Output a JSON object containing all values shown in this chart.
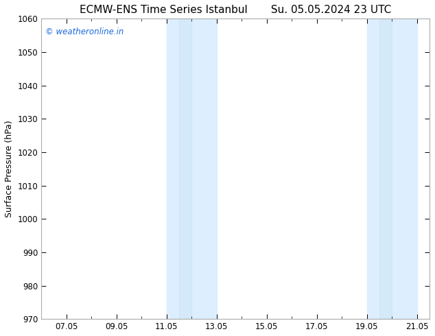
{
  "title_left": "ECMW-ENS Time Series Istanbul",
  "title_right": "Su. 05.05.2024 23 UTC",
  "ylabel": "Surface Pressure (hPa)",
  "background_color": "#ffffff",
  "plot_bg_color": "#ffffff",
  "ylim": [
    970,
    1060
  ],
  "yticks": [
    970,
    980,
    990,
    1000,
    1010,
    1020,
    1030,
    1040,
    1050,
    1060
  ],
  "xlim": [
    6.0,
    21.5
  ],
  "xtick_labels": [
    "07.05",
    "09.05",
    "11.05",
    "13.05",
    "15.05",
    "17.05",
    "19.05",
    "21.05"
  ],
  "xtick_positions": [
    7,
    9,
    11,
    13,
    15,
    17,
    19,
    21
  ],
  "minor_xtick_positions": [
    6,
    7,
    8,
    9,
    10,
    11,
    12,
    13,
    14,
    15,
    16,
    17,
    18,
    19,
    20,
    21
  ],
  "shaded_bands": [
    {
      "x_start": 11.0,
      "x_end": 11.5
    },
    {
      "x_start": 11.5,
      "x_end": 13.0
    },
    {
      "x_start": 19.0,
      "x_end": 19.5
    },
    {
      "x_start": 19.5,
      "x_end": 21.0
    }
  ],
  "shaded_color_light": "#ddeeff",
  "shaded_color_dark": "#cce8f8",
  "watermark_text": "© weatheronline.in",
  "watermark_color": "#1a6adc",
  "title_fontsize": 11,
  "tick_fontsize": 8.5,
  "ylabel_fontsize": 9,
  "spine_color": "#aaaaaa"
}
